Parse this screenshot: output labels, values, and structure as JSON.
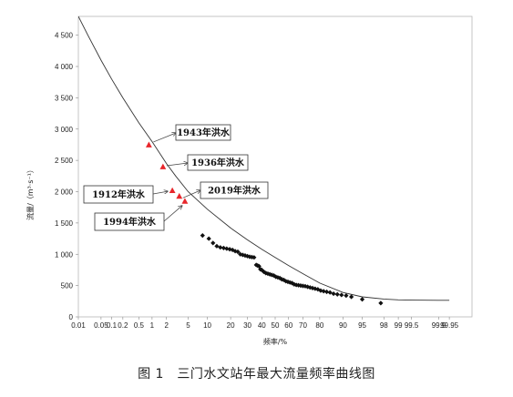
{
  "caption": "图 1　三门水文站年最大流量频率曲线图",
  "chart_data": {
    "type": "scatter",
    "title": "",
    "xlabel": "频率/%",
    "ylabel": "流量/（m³·s⁻¹）",
    "ylim": [
      0,
      4800
    ],
    "x_scale": "normal-probability",
    "x_ticks": [
      "0.01",
      "0.05",
      "0.1",
      "0.2",
      "0.5",
      "1",
      "2",
      "5",
      "10",
      "20",
      "30",
      "40",
      "50",
      "60",
      "70",
      "80",
      "90",
      "95",
      "98",
      "99",
      "99.5",
      "99.9",
      "99.95"
    ],
    "y_ticks": [
      0,
      500,
      1000,
      1500,
      2000,
      2500,
      3000,
      3500,
      4000,
      4500
    ],
    "y_tick_labels": [
      "0",
      "500",
      "1 000",
      "1 500",
      "2 000",
      "2 500",
      "3 000",
      "3 500",
      "4 000",
      "4 500"
    ],
    "grid": false,
    "curve": {
      "x": [
        0.01,
        0.02,
        0.05,
        0.1,
        0.2,
        0.5,
        1,
        2,
        3,
        5,
        10,
        20,
        30,
        40,
        50,
        60,
        70,
        80,
        90,
        95,
        98,
        99,
        99.5,
        99.9,
        99.95
      ],
      "y": [
        4800,
        4500,
        4100,
        3800,
        3500,
        3100,
        2800,
        2450,
        2250,
        2000,
        1720,
        1420,
        1230,
        1080,
        950,
        820,
        690,
        540,
        390,
        320,
        285,
        272,
        268,
        265,
        265
      ]
    },
    "historical_floods": [
      {
        "label": "1943年洪水",
        "x": 0.85,
        "y": 2750
      },
      {
        "label": "1936年洪水",
        "x": 1.7,
        "y": 2400
      },
      {
        "label": "1912年洪水",
        "x": 2.6,
        "y": 2020
      },
      {
        "label": "2019年洪水",
        "x": 3.5,
        "y": 1930
      },
      {
        "label": "1994年洪水",
        "x": 4.4,
        "y": 1850
      }
    ],
    "observed": {
      "x": [
        8.5,
        10.5,
        12,
        13.5,
        15,
        16.5,
        18,
        19.5,
        21,
        22.5,
        24,
        25.5,
        27,
        28.5,
        30,
        31.5,
        33,
        34.5,
        36,
        37,
        38,
        39,
        40,
        41.5,
        43,
        44.5,
        46,
        47.5,
        49,
        50.5,
        52,
        53.5,
        55,
        56.5,
        58,
        59.5,
        61,
        62.5,
        64,
        65.5,
        67,
        68.5,
        70,
        71.5,
        73,
        74.5,
        76,
        77.5,
        79,
        80.5,
        82,
        83.5,
        85,
        86.5,
        88,
        89.5,
        91,
        92.5,
        95,
        97.7
      ],
      "y": [
        1300,
        1250,
        1180,
        1130,
        1110,
        1100,
        1090,
        1080,
        1070,
        1050,
        1040,
        1000,
        990,
        980,
        970,
        960,
        955,
        950,
        830,
        820,
        810,
        760,
        750,
        720,
        700,
        690,
        680,
        670,
        660,
        640,
        630,
        620,
        600,
        590,
        570,
        560,
        550,
        540,
        520,
        510,
        505,
        500,
        495,
        490,
        480,
        470,
        460,
        450,
        440,
        420,
        410,
        400,
        390,
        370,
        360,
        350,
        340,
        320,
        280,
        220
      ]
    }
  }
}
